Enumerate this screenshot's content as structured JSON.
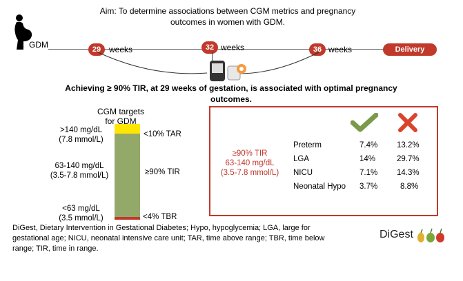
{
  "aim": {
    "line1": "Aim: To determine associations between CGM metrics and pregnancy",
    "line2": "outcomes in women with GDM."
  },
  "timeline": {
    "start_label": "GDM",
    "weeks_label": "weeks",
    "points": [
      "29",
      "32",
      "36"
    ],
    "end_label": "Delivery"
  },
  "headline": {
    "line1": "Achieving ≥ 90% TIR, at 29 weeks of gestation, is associated with optimal pregnancy",
    "line2": "outcomes."
  },
  "cgm_targets": {
    "title1": "CGM targets",
    "title2": "for GDM",
    "high_label1": ">140 mg/dL",
    "high_label2": "(7.8 mmol/L)",
    "range_label1": "63-140 mg/dL",
    "range_label2": "(3.5-7.8 mmol/L)",
    "low_label1": "<63 mg/dL",
    "low_label2": "(3.5 mmol/L)",
    "tar": "<10% TAR",
    "tir": "≥90% TIR",
    "tbr": "<4% TBR"
  },
  "outcomes": {
    "condition1": "≥90% TIR",
    "condition2": "63-140 mg/dL",
    "condition3": "(3.5-7.8 mmol/L)",
    "rows": [
      {
        "label": "Preterm",
        "achieved": "7.4%",
        "not_achieved": "13.2%"
      },
      {
        "label": "LGA",
        "achieved": "14%",
        "not_achieved": "29.7%"
      },
      {
        "label": "NICU",
        "achieved": "7.1%",
        "not_achieved": "14.3%"
      },
      {
        "label": "Neonatal Hypo",
        "achieved": "3.7%",
        "not_achieved": "8.8%"
      }
    ],
    "check_color": "#7a9a4a",
    "cross_color": "#d9442c"
  },
  "footnote": {
    "line1": "DiGest, Dietary Intervention in Gestational Diabetes; Hypo, hypoglycemia; LGA, large for",
    "line2": "gestational age; NICU, neonatal  intensive care unit; TAR, time above range; TBR, time below",
    "line3": "range; TIR, time in range."
  },
  "logo": {
    "text": "DiGest"
  }
}
